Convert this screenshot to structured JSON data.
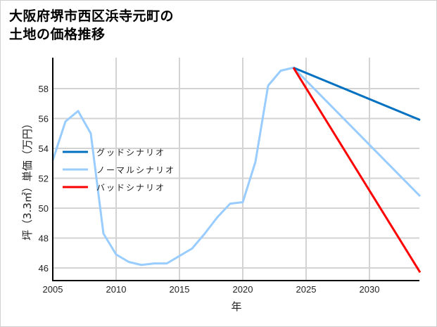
{
  "title_line1": "大阪府堺市西区浜寺元町の",
  "title_line2": "土地の価格推移",
  "chart_data": {
    "type": "line",
    "title": "大阪府堺市西区浜寺元町の土地の価格推移",
    "xlabel": "年",
    "ylabel": "坪（3.3㎡）単価（万円）",
    "xlim": [
      2005,
      2034
    ],
    "ylim": [
      45,
      60
    ],
    "xticks": [
      2005,
      2010,
      2015,
      2020,
      2025,
      2030
    ],
    "yticks": [
      46,
      48,
      50,
      52,
      54,
      56,
      58
    ],
    "grid": true,
    "legend_position": "center-left",
    "series": [
      {
        "name": "グッドシナリオ",
        "color": "#0070c0",
        "x": [
          2024,
          2034
        ],
        "values": [
          59.4,
          55.9
        ]
      },
      {
        "name": "ノーマルシナリオ",
        "color": "#99ccff",
        "x": [
          2005,
          2006,
          2007,
          2008,
          2009,
          2010,
          2011,
          2012,
          2013,
          2014,
          2015,
          2016,
          2017,
          2018,
          2019,
          2020,
          2021,
          2022,
          2023,
          2024,
          2034
        ],
        "values": [
          53.2,
          55.8,
          56.5,
          55.0,
          48.3,
          46.9,
          46.4,
          46.2,
          46.3,
          46.3,
          46.8,
          47.3,
          48.3,
          49.4,
          50.3,
          50.4,
          53.1,
          58.2,
          59.2,
          59.4,
          50.8
        ]
      },
      {
        "name": "バッドシナリオ",
        "color": "#ff0000",
        "x": [
          2024,
          2034
        ],
        "values": [
          59.4,
          45.7
        ]
      }
    ]
  }
}
